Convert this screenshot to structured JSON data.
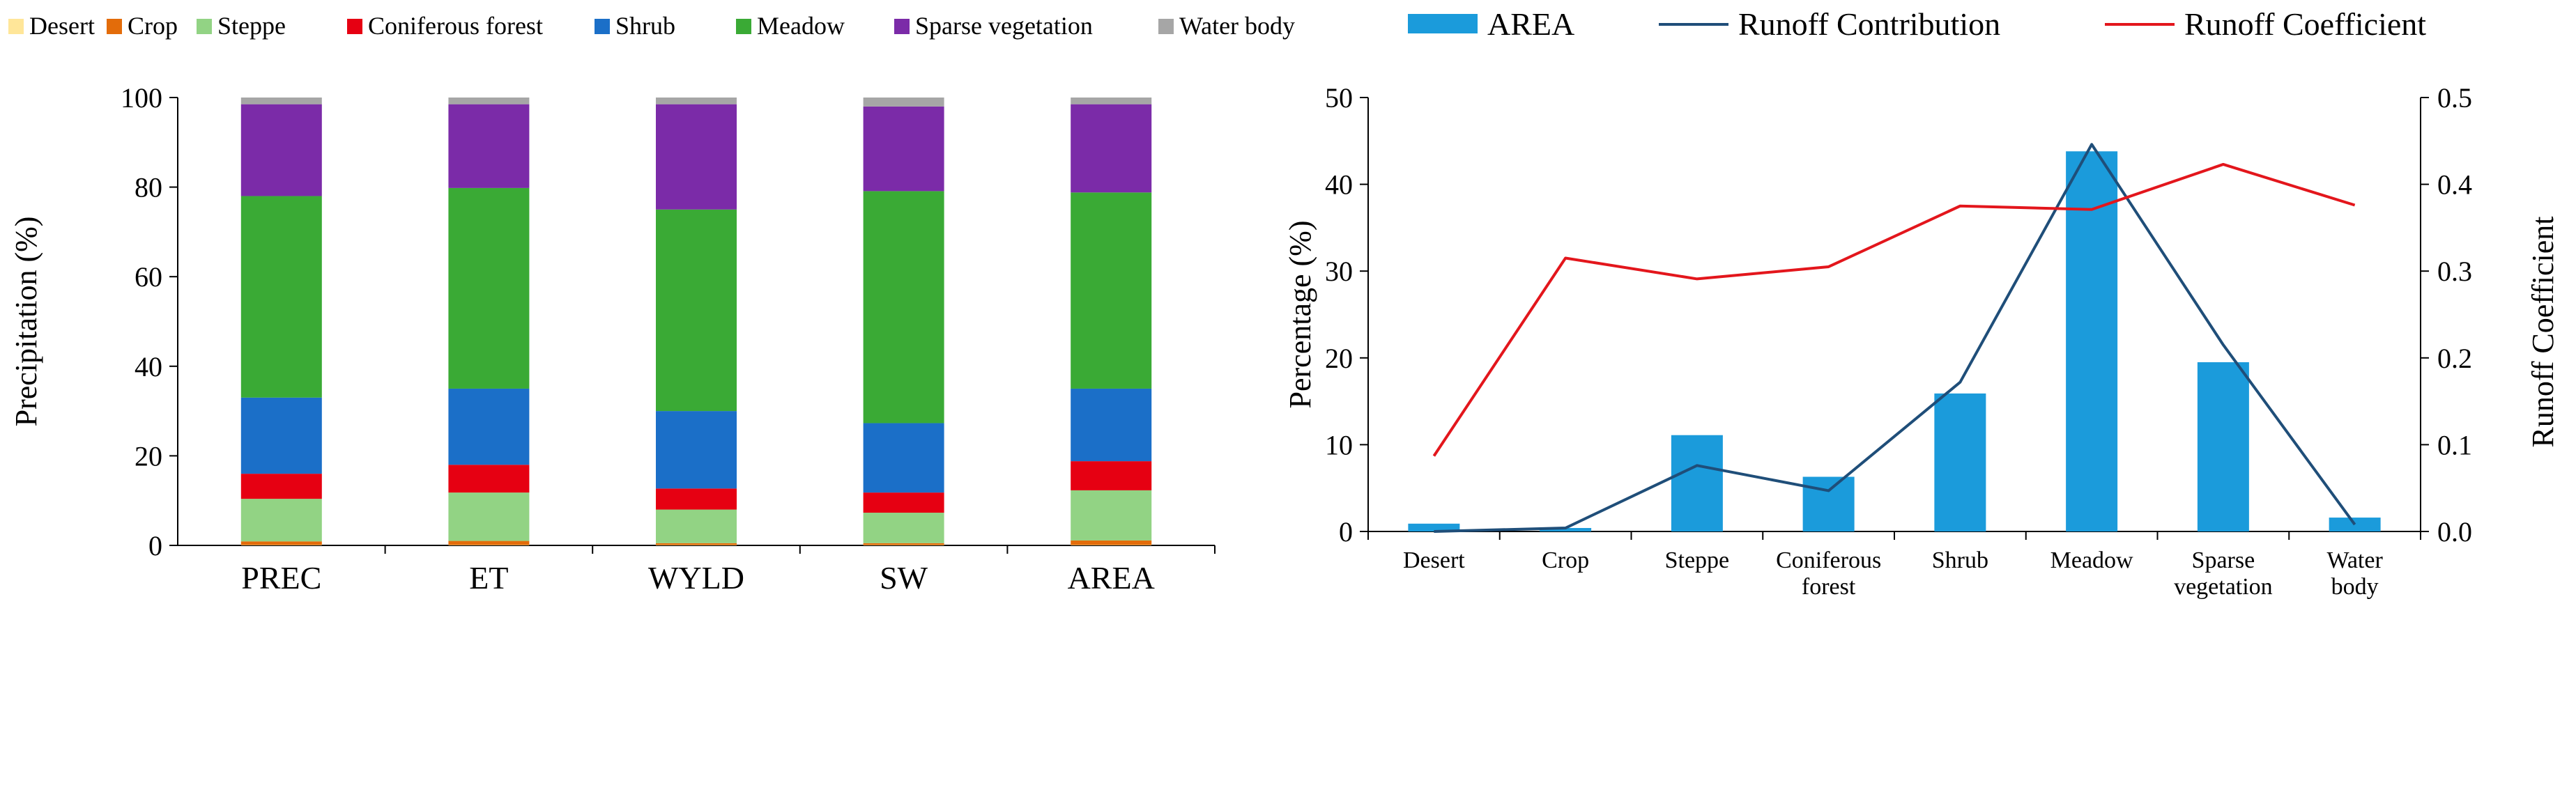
{
  "chart_data": [
    {
      "type": "bar",
      "stacked": true,
      "categories": [
        "PREC",
        "ET",
        "WYLD",
        "SW",
        "AREA"
      ],
      "ylabel": "Precipitation (%)",
      "xlabel": "",
      "ylim": [
        0,
        100
      ],
      "yticks": [
        "0",
        "20",
        "40",
        "60",
        "80",
        "100"
      ],
      "legend_position": "top",
      "series": [
        {
          "name": "Desert",
          "color": "#FFE699",
          "values": [
            0.1,
            0.1,
            0.1,
            0.1,
            0.1
          ]
        },
        {
          "name": "Crop",
          "color": "#E36C0A",
          "values": [
            0.8,
            0.9,
            0.4,
            0.4,
            1.0
          ]
        },
        {
          "name": "Steppe",
          "color": "#92D384",
          "values": [
            9.5,
            10.8,
            7.5,
            6.8,
            11.2
          ]
        },
        {
          "name": "Coniferous forest",
          "color": "#E60012",
          "values": [
            5.6,
            6.2,
            4.7,
            4.5,
            6.5
          ]
        },
        {
          "name": "Shrub",
          "color": "#1B6FC8",
          "values": [
            17.0,
            17.0,
            17.3,
            15.5,
            16.2
          ]
        },
        {
          "name": "Meadow",
          "color": "#3AAA35",
          "values": [
            45.0,
            44.8,
            45.0,
            51.8,
            43.8
          ]
        },
        {
          "name": "Sparse vegetation",
          "color": "#7B2BA8",
          "values": [
            20.5,
            18.7,
            23.5,
            18.9,
            19.7
          ]
        },
        {
          "name": "Water body",
          "color": "#A6A6A6",
          "values": [
            1.5,
            1.5,
            1.5,
            2.0,
            1.5
          ]
        }
      ]
    },
    {
      "type": "bar",
      "combo": "bar-line-dual-axis",
      "categories": [
        [
          "Desert"
        ],
        [
          "Crop"
        ],
        [
          "Steppe"
        ],
        [
          "Coniferous",
          "forest"
        ],
        [
          "Shrub"
        ],
        [
          "Meadow"
        ],
        [
          "Sparse",
          "vegetation"
        ],
        [
          "Water",
          "body"
        ]
      ],
      "ylabel": "Percentage (%)",
      "ylim": [
        0,
        50
      ],
      "yticks": [
        "0",
        "10",
        "20",
        "30",
        "40",
        "50"
      ],
      "y2label": "Runoff Coefficient",
      "y2lim": [
        0,
        0.5
      ],
      "y2ticks": [
        "0.0",
        "0.1",
        "0.2",
        "0.3",
        "0.4",
        "0.5"
      ],
      "legend_position": "top",
      "series": [
        {
          "name": "AREA",
          "kind": "bar",
          "axis": "left",
          "color": "#1B9BDB",
          "values": [
            0.9,
            0.4,
            11.1,
            6.3,
            15.9,
            43.8,
            19.5,
            1.6
          ]
        },
        {
          "name": "Runoff Contribution",
          "kind": "line",
          "axis": "left",
          "color": "#1F4E79",
          "values": [
            0.0,
            0.4,
            7.6,
            4.7,
            17.2,
            44.6,
            21.5,
            0.8
          ]
        },
        {
          "name": "Runoff Coefficient",
          "kind": "line",
          "axis": "right",
          "color": "#E3161C",
          "values": [
            0.087,
            0.315,
            0.291,
            0.305,
            0.375,
            0.371,
            0.423,
            0.376
          ]
        }
      ]
    }
  ]
}
